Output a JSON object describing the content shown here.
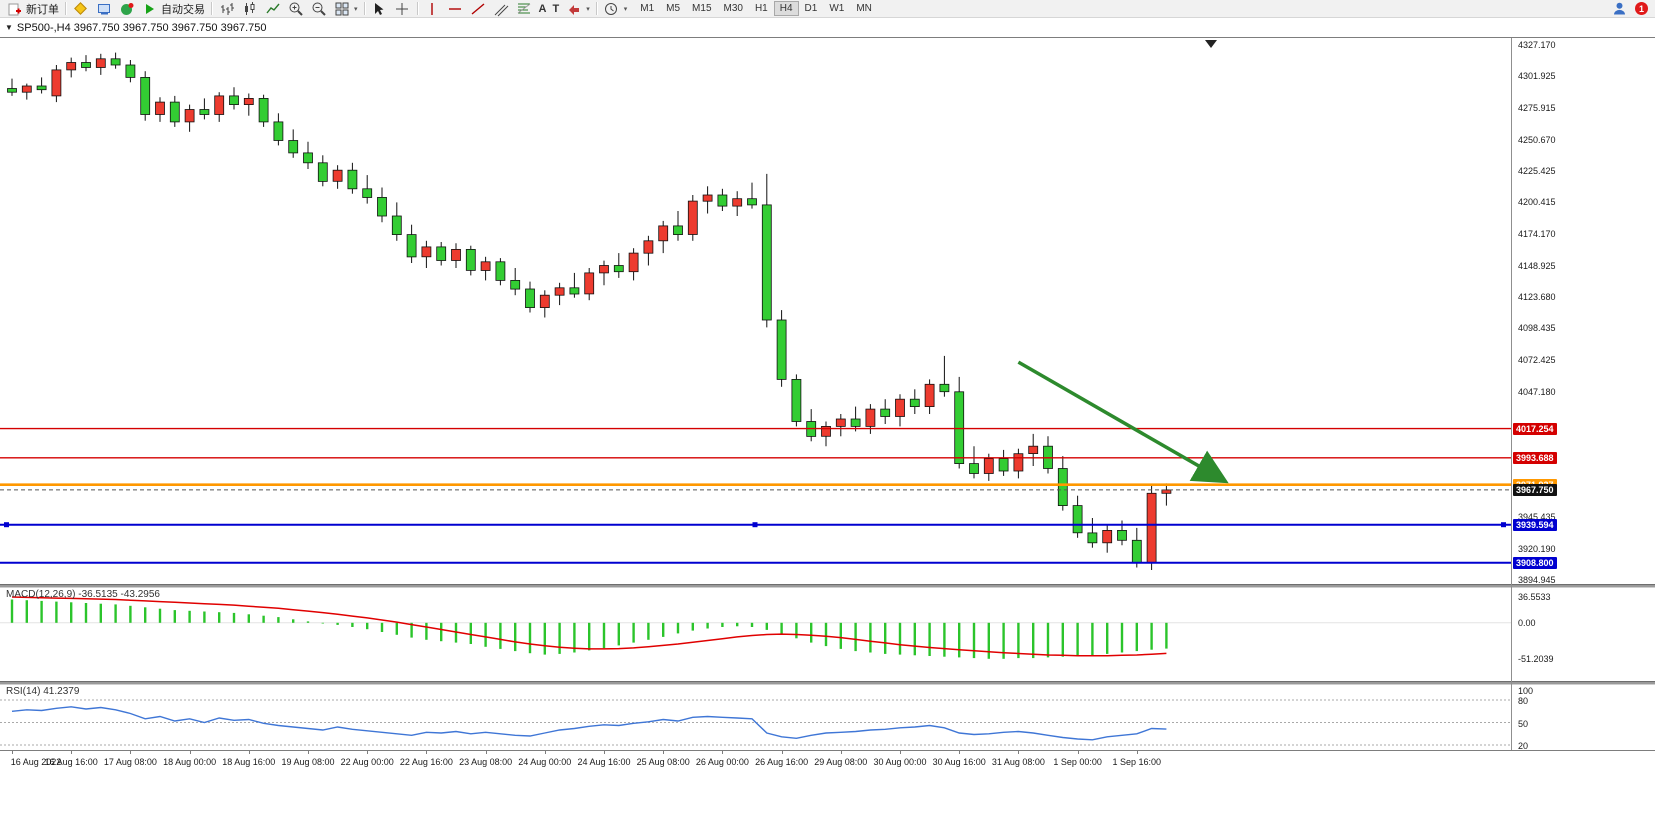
{
  "toolbar": {
    "new_order_label": "新订单",
    "autotrading_label": "自动交易",
    "tool_labels": {
      "text_tool": "A",
      "label_tool": "T"
    },
    "timeframes": [
      "M1",
      "M5",
      "M15",
      "M30",
      "H1",
      "H4",
      "D1",
      "W1",
      "MN"
    ],
    "active_timeframe": "H4",
    "notification_count": "1"
  },
  "chart_header": {
    "title": "SP500-,H4 3967.750 3967.750 3967.750 3967.750"
  },
  "indicators": {
    "macd": {
      "label": "MACD(12,26,9) -36.5135 -43.2956",
      "ticks": [
        {
          "label": "36.5533",
          "value": 36.5533
        },
        {
          "label": "0.00",
          "value": 0
        },
        {
          "label": "-51.2039",
          "value": -51.2039
        }
      ]
    },
    "rsi": {
      "label": "RSI(14) 41.2379",
      "ticks": [
        {
          "label": "100",
          "value": 100
        },
        {
          "label": "80",
          "value": 80
        },
        {
          "label": "50",
          "value": 50
        },
        {
          "label": "20",
          "value": 20
        }
      ],
      "levels": [
        80,
        50,
        20
      ]
    }
  },
  "chart_data": {
    "type": "candlestick",
    "symbol": "SP500-",
    "timeframe": "H4",
    "last_price": 3967.75,
    "colors": {
      "up": "#ed3b2f",
      "down": "#33cd33",
      "wick": "#111111",
      "macd_hist": "#2bc42b",
      "macd_signal": "#e00000",
      "rsi_line": "#3f76d6",
      "arrow": "#2d8a2d"
    },
    "price_ticks": [
      {
        "label": "4327.170",
        "value": 4327.17
      },
      {
        "label": "4301.925",
        "value": 4301.925
      },
      {
        "label": "4275.915",
        "value": 4275.915
      },
      {
        "label": "4250.670",
        "value": 4250.67
      },
      {
        "label": "4225.425",
        "value": 4225.425
      },
      {
        "label": "4200.415",
        "value": 4200.415
      },
      {
        "label": "4174.170",
        "value": 4174.17
      },
      {
        "label": "4148.925",
        "value": 4148.925
      },
      {
        "label": "4123.680",
        "value": 4123.68
      },
      {
        "label": "4098.435",
        "value": 4098.435
      },
      {
        "label": "4072.425",
        "value": 4072.425
      },
      {
        "label": "4047.180",
        "value": 4047.18
      },
      {
        "label": "3945.435",
        "value": 3945.435
      },
      {
        "label": "3920.190",
        "value": 3920.19
      },
      {
        "label": "3894.945",
        "value": 3894.945
      }
    ],
    "hlines": [
      {
        "value": 4017.254,
        "label": "4017.254",
        "color": "#d40000",
        "width": 1.4
      },
      {
        "value": 3993.688,
        "label": "3993.688",
        "color": "#d40000",
        "width": 1.4
      },
      {
        "value": 3971.937,
        "label": "3971.937",
        "color": "#ff9800",
        "width": 2.6
      },
      {
        "value": 3967.75,
        "label": "3967.750",
        "color": "#555555",
        "width": 1,
        "dash": "4,3",
        "badge_color": "#111111"
      },
      {
        "value": 3939.594,
        "label": "3939.594",
        "color": "#0000d0",
        "width": 2,
        "handles": true
      },
      {
        "value": 3908.8,
        "label": "3908.800",
        "color": "#0000d0",
        "width": 2
      }
    ],
    "candles": [
      [
        4292,
        4300,
        4286,
        4289
      ],
      [
        4289,
        4296,
        4283,
        4294
      ],
      [
        4294,
        4301,
        4288,
        4291
      ],
      [
        4286,
        4311,
        4281,
        4307
      ],
      [
        4307,
        4317,
        4301,
        4313
      ],
      [
        4313,
        4319,
        4306,
        4309
      ],
      [
        4309,
        4320,
        4303,
        4316
      ],
      [
        4316,
        4321,
        4308,
        4311
      ],
      [
        4311,
        4315,
        4297,
        4301
      ],
      [
        4301,
        4306,
        4266,
        4271
      ],
      [
        4271,
        4285,
        4265,
        4281
      ],
      [
        4281,
        4286,
        4261,
        4265
      ],
      [
        4265,
        4279,
        4257,
        4275
      ],
      [
        4275,
        4284,
        4267,
        4271
      ],
      [
        4271,
        4289,
        4265,
        4286
      ],
      [
        4286,
        4293,
        4275,
        4279
      ],
      [
        4279,
        4288,
        4270,
        4284
      ],
      [
        4284,
        4287,
        4261,
        4265
      ],
      [
        4265,
        4272,
        4246,
        4250
      ],
      [
        4250,
        4259,
        4236,
        4240
      ],
      [
        4240,
        4249,
        4227,
        4232
      ],
      [
        4232,
        4238,
        4213,
        4217
      ],
      [
        4217,
        4230,
        4211,
        4226
      ],
      [
        4226,
        4232,
        4207,
        4211
      ],
      [
        4211,
        4222,
        4199,
        4204
      ],
      [
        4204,
        4212,
        4184,
        4189
      ],
      [
        4189,
        4200,
        4169,
        4174
      ],
      [
        4174,
        4182,
        4151,
        4156
      ],
      [
        4156,
        4169,
        4147,
        4164
      ],
      [
        4164,
        4168,
        4149,
        4153
      ],
      [
        4153,
        4167,
        4147,
        4162
      ],
      [
        4162,
        4165,
        4141,
        4145
      ],
      [
        4145,
        4156,
        4137,
        4152
      ],
      [
        4152,
        4155,
        4133,
        4137
      ],
      [
        4137,
        4147,
        4125,
        4130
      ],
      [
        4130,
        4136,
        4111,
        4115
      ],
      [
        4115,
        4129,
        4107,
        4125
      ],
      [
        4125,
        4135,
        4117,
        4131
      ],
      [
        4131,
        4143,
        4123,
        4126
      ],
      [
        4126,
        4147,
        4121,
        4143
      ],
      [
        4143,
        4153,
        4133,
        4149
      ],
      [
        4149,
        4159,
        4139,
        4144
      ],
      [
        4144,
        4163,
        4137,
        4159
      ],
      [
        4159,
        4173,
        4149,
        4169
      ],
      [
        4169,
        4185,
        4159,
        4181
      ],
      [
        4181,
        4193,
        4169,
        4174
      ],
      [
        4174,
        4206,
        4169,
        4201
      ],
      [
        4201,
        4213,
        4191,
        4206
      ],
      [
        4206,
        4211,
        4193,
        4197
      ],
      [
        4197,
        4209,
        4189,
        4203
      ],
      [
        4203,
        4216,
        4195,
        4198
      ],
      [
        4198,
        4223,
        4099,
        4105
      ],
      [
        4105,
        4113,
        4051,
        4057
      ],
      [
        4057,
        4061,
        4019,
        4023
      ],
      [
        4023,
        4033,
        4007,
        4011
      ],
      [
        4011,
        4023,
        4003,
        4019
      ],
      [
        4019,
        4029,
        4011,
        4025
      ],
      [
        4025,
        4035,
        4015,
        4019
      ],
      [
        4019,
        4037,
        4013,
        4033
      ],
      [
        4033,
        4041,
        4021,
        4027
      ],
      [
        4027,
        4045,
        4019,
        4041
      ],
      [
        4041,
        4049,
        4029,
        4035
      ],
      [
        4035,
        4057,
        4029,
        4053
      ],
      [
        4053,
        4076,
        4043,
        4047
      ],
      [
        4047,
        4059,
        3985,
        3989
      ],
      [
        3989,
        4003,
        3977,
        3981
      ],
      [
        3981,
        3997,
        3975,
        3993
      ],
      [
        3993,
        4000,
        3979,
        3983
      ],
      [
        3983,
        4001,
        3977,
        3997
      ],
      [
        3997,
        4013,
        3987,
        4003
      ],
      [
        4003,
        4011,
        3981,
        3985
      ],
      [
        3985,
        3995,
        3951,
        3955
      ],
      [
        3955,
        3963,
        3929,
        3933
      ],
      [
        3933,
        3945,
        3921,
        3925
      ],
      [
        3925,
        3939,
        3917,
        3935
      ],
      [
        3935,
        3943,
        3923,
        3927
      ],
      [
        3927,
        3937,
        3905,
        3909
      ],
      [
        3909,
        3971,
        3903,
        3965
      ],
      [
        3965,
        3973,
        3955,
        3967.75
      ]
    ],
    "macd_hist": [
      33,
      32,
      31,
      30,
      29,
      28,
      27,
      26,
      24,
      22,
      20,
      18,
      17,
      16,
      15,
      14,
      12,
      10,
      8,
      5,
      2,
      -1,
      -3,
      -6,
      -9,
      -13,
      -17,
      -21,
      -24,
      -26,
      -28,
      -30,
      -34,
      -37,
      -40,
      -43,
      -45,
      -44,
      -42,
      -39,
      -36,
      -32,
      -28,
      -24,
      -20,
      -15,
      -11,
      -8,
      -6,
      -5,
      -6,
      -10,
      -16,
      -22,
      -28,
      -33,
      -37,
      -40,
      -42,
      -44,
      -45,
      -46,
      -47,
      -48,
      -49,
      -50,
      -51,
      -51,
      -50,
      -50,
      -49,
      -48,
      -47,
      -46,
      -44,
      -42,
      -40,
      -38,
      -36.51
    ],
    "macd_signal": [
      36.5,
      36,
      35.5,
      35,
      34.5,
      34,
      33.5,
      33,
      32,
      31,
      30,
      29,
      28,
      27,
      26,
      25,
      23.5,
      22,
      20.5,
      18.5,
      16.5,
      14.5,
      12,
      9.5,
      7,
      4,
      1,
      -2.5,
      -6,
      -9.5,
      -13,
      -16.5,
      -20,
      -23.5,
      -27,
      -30,
      -32.5,
      -34.5,
      -36,
      -37,
      -37,
      -36.5,
      -35.5,
      -34,
      -32,
      -30,
      -27.5,
      -25,
      -22.5,
      -20,
      -18,
      -16.5,
      -16,
      -16.5,
      -17.5,
      -19,
      -21,
      -23.5,
      -26,
      -28.5,
      -31,
      -33,
      -35,
      -36.5,
      -38,
      -39.5,
      -41,
      -42.5,
      -43.5,
      -44.5,
      -45.5,
      -46,
      -46.5,
      -46.5,
      -46.5,
      -46,
      -45.5,
      -44.5,
      -43.3
    ],
    "rsi": [
      65,
      67,
      66,
      69,
      71,
      68,
      70,
      67,
      62,
      55,
      58,
      52,
      55,
      50,
      56,
      53,
      54,
      49,
      46,
      44,
      42,
      40,
      44,
      41,
      39,
      37,
      35,
      33,
      37,
      36,
      38,
      35,
      37,
      35,
      33,
      32,
      36,
      40,
      42,
      45,
      47,
      46,
      49,
      51,
      54,
      52,
      57,
      58,
      57,
      56,
      55,
      36,
      31,
      29,
      33,
      36,
      37,
      38,
      40,
      41,
      43,
      44,
      46,
      43,
      36,
      34,
      35,
      37,
      38,
      36,
      33,
      30,
      28,
      27,
      31,
      33,
      35,
      42,
      41.24
    ],
    "time_labels": [
      {
        "bar": 0,
        "label": "16 Aug 2022"
      },
      {
        "bar": 4,
        "label": "16 Aug 16:00"
      },
      {
        "bar": 8,
        "label": "17 Aug 08:00"
      },
      {
        "bar": 12,
        "label": "18 Aug 00:00"
      },
      {
        "bar": 16,
        "label": "18 Aug 16:00"
      },
      {
        "bar": 20,
        "label": "19 Aug 08:00"
      },
      {
        "bar": 24,
        "label": "22 Aug 00:00"
      },
      {
        "bar": 28,
        "label": "22 Aug 16:00"
      },
      {
        "bar": 32,
        "label": "23 Aug 08:00"
      },
      {
        "bar": 36,
        "label": "24 Aug 00:00"
      },
      {
        "bar": 40,
        "label": "24 Aug 16:00"
      },
      {
        "bar": 44,
        "label": "25 Aug 08:00"
      },
      {
        "bar": 48,
        "label": "26 Aug 00:00"
      },
      {
        "bar": 52,
        "label": "26 Aug 16:00"
      },
      {
        "bar": 56,
        "label": "29 Aug 08:00"
      },
      {
        "bar": 60,
        "label": "30 Aug 00:00"
      },
      {
        "bar": 64,
        "label": "30 Aug 16:00"
      },
      {
        "bar": 68,
        "label": "31 Aug 08:00"
      },
      {
        "bar": 72,
        "label": "1 Sep 00:00"
      },
      {
        "bar": 76,
        "label": "1 Sep 16:00"
      }
    ],
    "arrow": {
      "from_bar": 68,
      "from_price": 4071,
      "to_bar": 81.8,
      "to_price": 3976
    }
  }
}
